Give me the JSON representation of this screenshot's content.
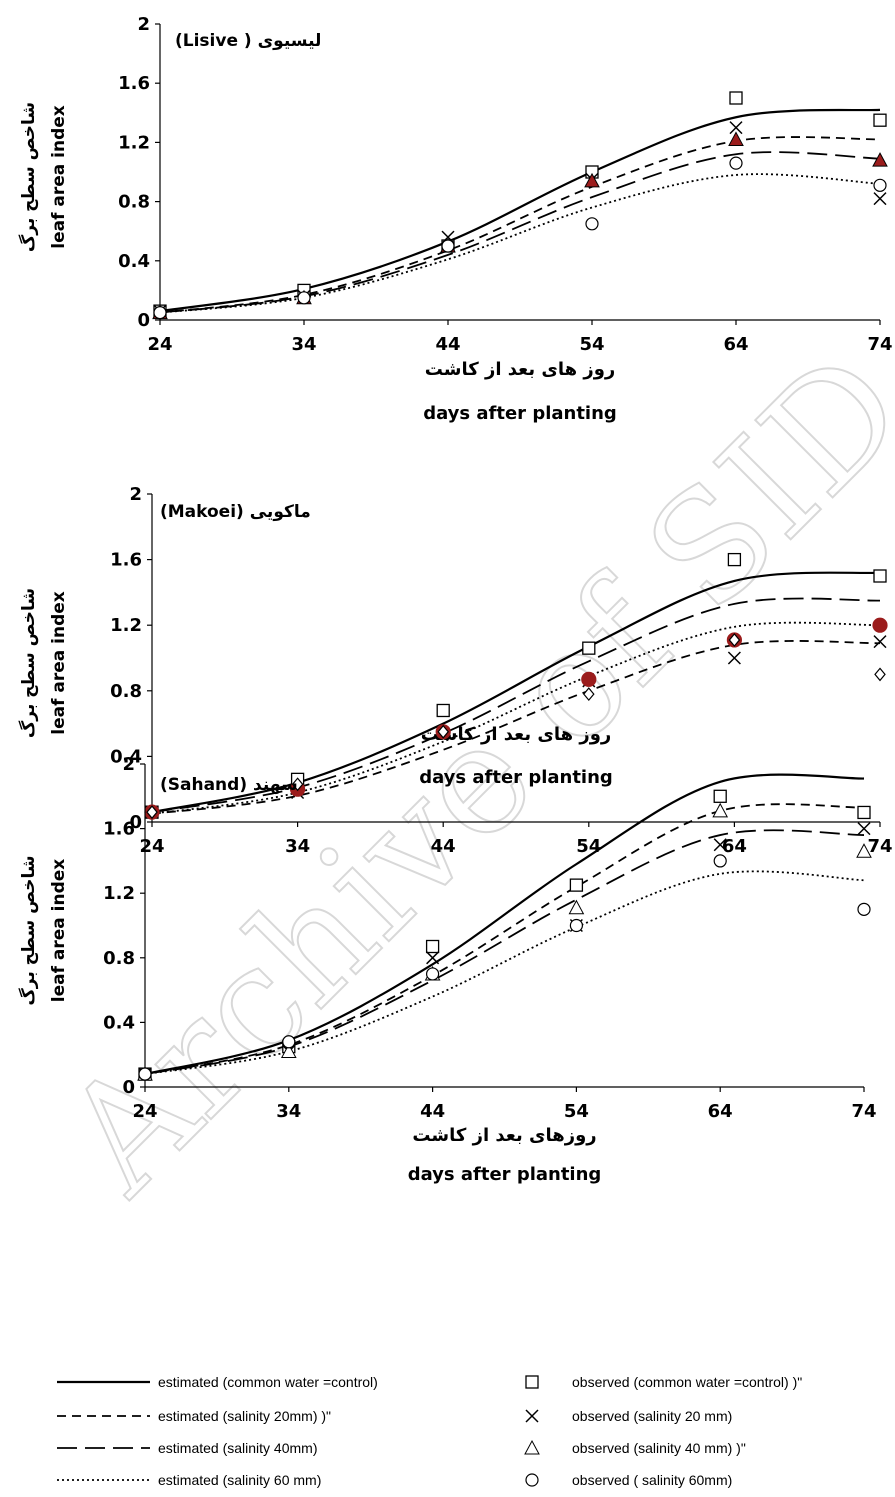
{
  "watermark": "Archive of SID",
  "chart_data": [
    {
      "type": "line",
      "title": "(Lisive ) لیسیوی",
      "xlabel_fa": "روز های بعد از کاشت",
      "xlabel": "days after planting",
      "ylabel_fa": "شاخص سطح برگ",
      "ylabel": "leaf area index",
      "xlim": [
        24,
        74
      ],
      "ylim": [
        0,
        2
      ],
      "x_ticks": [
        "24",
        "34",
        "44",
        "54",
        "64",
        "74"
      ],
      "y_ticks": [
        "0",
        "0.4",
        "0.8",
        "1.2",
        "1.6",
        "2"
      ],
      "x": [
        24,
        34,
        44,
        54,
        64,
        74
      ],
      "series": [
        {
          "name": "estimated (common water =control)",
          "dash": "solid",
          "values": [
            0.06,
            0.21,
            0.53,
            1.0,
            1.37,
            1.42
          ]
        },
        {
          "name": "estimated (salinity 20mm) )\"",
          "dash": "dash",
          "values": [
            0.05,
            0.17,
            0.47,
            0.9,
            1.21,
            1.22
          ]
        },
        {
          "name": "estimated (salinity 40mm)",
          "dash": "longdash",
          "values": [
            0.05,
            0.16,
            0.44,
            0.83,
            1.12,
            1.09
          ]
        },
        {
          "name": "estimated (salinity 60 mm)",
          "dash": "dot",
          "values": [
            0.05,
            0.15,
            0.41,
            0.76,
            0.98,
            0.92
          ]
        }
      ],
      "observed": [
        {
          "name": "observed (common water =control) )\"",
          "marker": "square",
          "values": [
            0.06,
            0.2,
            0.5,
            1.0,
            1.5,
            1.35
          ]
        },
        {
          "name": "observed  (salinity 20 mm)",
          "marker": "x",
          "values": [
            0.06,
            0.16,
            0.56,
            0.95,
            1.3,
            0.82
          ]
        },
        {
          "name": "observed (salinity  40 mm) )\"",
          "marker": "triangle-filled",
          "values": [
            0.05,
            0.15,
            0.5,
            0.94,
            1.22,
            1.08
          ]
        },
        {
          "name": "observed ( salinity 60mm)",
          "marker": "circle",
          "values": [
            0.05,
            0.15,
            0.5,
            0.65,
            1.06,
            0.91
          ]
        }
      ]
    },
    {
      "type": "line",
      "title": "(Makoei) ماکویی",
      "xlabel_fa": "روز های بعد از کاشت",
      "xlabel": "days after planting",
      "ylabel_fa": "شاخص سطح برگ",
      "ylabel": "leaf area index",
      "xlim": [
        24,
        74
      ],
      "ylim": [
        0,
        2
      ],
      "x_ticks": [
        "24",
        "34",
        "44",
        "54",
        "64",
        "74"
      ],
      "y_ticks": [
        "0",
        "0.4",
        "0.8",
        "1.2",
        "1.6",
        "2"
      ],
      "x": [
        24,
        34,
        44,
        54,
        64,
        74
      ],
      "series": [
        {
          "name": "estimated (common water =control)",
          "dash": "solid",
          "values": [
            0.06,
            0.24,
            0.6,
            1.07,
            1.47,
            1.52
          ]
        },
        {
          "name": "estimated (salinity 20mm) )\"",
          "dash": "longdash",
          "values": [
            0.06,
            0.21,
            0.54,
            0.98,
            1.33,
            1.35
          ]
        },
        {
          "name": "estimated (salinity 40mm)",
          "dash": "dot",
          "values": [
            0.05,
            0.18,
            0.49,
            0.89,
            1.19,
            1.2
          ]
        },
        {
          "name": "estimated (salinity 60 mm)",
          "dash": "dash",
          "values": [
            0.05,
            0.16,
            0.44,
            0.8,
            1.08,
            1.09
          ]
        }
      ],
      "observed": [
        {
          "name": "observed (common water =control) )\"",
          "marker": "square",
          "values": [
            0.06,
            0.26,
            0.68,
            1.06,
            1.6,
            1.5
          ]
        },
        {
          "name": "observed  (salinity 20 mm)",
          "marker": "x",
          "values": [
            0.06,
            0.18,
            0.54,
            0.86,
            1.0,
            1.1
          ]
        },
        {
          "name": "observed (salinity  40 mm) )\"",
          "marker": "circle-filled",
          "values": [
            0.06,
            0.2,
            0.55,
            0.87,
            1.11,
            1.2
          ]
        },
        {
          "name": "observed ( salinity 60mm)",
          "marker": "diamond",
          "values": [
            0.06,
            0.23,
            0.55,
            0.78,
            1.11,
            0.9
          ]
        }
      ]
    },
    {
      "type": "line",
      "title": "(Sahand) سهند",
      "xlabel_fa": "روزهای بعد از کاشت",
      "xlabel": "days after planting",
      "ylabel_fa": "شاخص سطح برگ",
      "ylabel": "leaf area index",
      "xlim": [
        24,
        74
      ],
      "ylim": [
        0,
        2
      ],
      "x_ticks": [
        "24",
        "34",
        "44",
        "54",
        "64",
        "74"
      ],
      "y_ticks": [
        "0",
        "0.4",
        "0.8",
        "1.2",
        "1.6",
        "2"
      ],
      "x": [
        24,
        34,
        44,
        54,
        64,
        74
      ],
      "series": [
        {
          "name": "estimated (common water =control)",
          "dash": "solid",
          "values": [
            0.08,
            0.29,
            0.76,
            1.38,
            1.89,
            1.91
          ]
        },
        {
          "name": "estimated (salinity 20mm) )\"",
          "dash": "dash",
          "values": [
            0.08,
            0.26,
            0.69,
            1.24,
            1.71,
            1.73
          ]
        },
        {
          "name": "estimated (salinity 40mm)",
          "dash": "longdash",
          "values": [
            0.08,
            0.25,
            0.66,
            1.16,
            1.56,
            1.56
          ]
        },
        {
          "name": "estimated (salinity 60 mm)",
          "dash": "dot",
          "values": [
            0.08,
            0.22,
            0.56,
            0.99,
            1.32,
            1.28
          ]
        }
      ],
      "observed": [
        {
          "name": "observed (common water =control) )\"",
          "marker": "square",
          "values": [
            0.08,
            0.25,
            0.87,
            1.25,
            1.8,
            1.7
          ]
        },
        {
          "name": "observed  (salinity 20 mm)",
          "marker": "x",
          "values": [
            0.08,
            0.22,
            0.8,
            1.0,
            1.5,
            1.6
          ]
        },
        {
          "name": "observed (salinity  40 mm) )\"",
          "marker": "triangle",
          "values": [
            0.08,
            0.22,
            0.7,
            1.11,
            1.71,
            1.46
          ]
        },
        {
          "name": "observed ( salinity 60mm)",
          "marker": "circle",
          "values": [
            0.08,
            0.28,
            0.7,
            1.0,
            1.4,
            1.1
          ]
        }
      ]
    }
  ],
  "legend": {
    "estimated": [
      {
        "label": "estimated (common water =control)",
        "dash": "solid"
      },
      {
        "label": "estimated (salinity 20mm) )\"",
        "dash": "dash"
      },
      {
        "label": "estimated (salinity 40mm)",
        "dash": "longdash"
      },
      {
        "label": "estimated (salinity 60 mm)",
        "dash": "dot"
      }
    ],
    "observed": [
      {
        "label": "observed (common water =control) )\"",
        "marker": "square"
      },
      {
        "label": "observed  (salinity 20 mm)",
        "marker": "x"
      },
      {
        "label": "observed (salinity  40 mm) )\"",
        "marker": "triangle"
      },
      {
        "label": "observed ( salinity 60mm)",
        "marker": "circle"
      }
    ]
  },
  "colors": {
    "axis": "#000000",
    "filled_marker": "#9b1c1c",
    "watermark": "#d8d8d8"
  }
}
